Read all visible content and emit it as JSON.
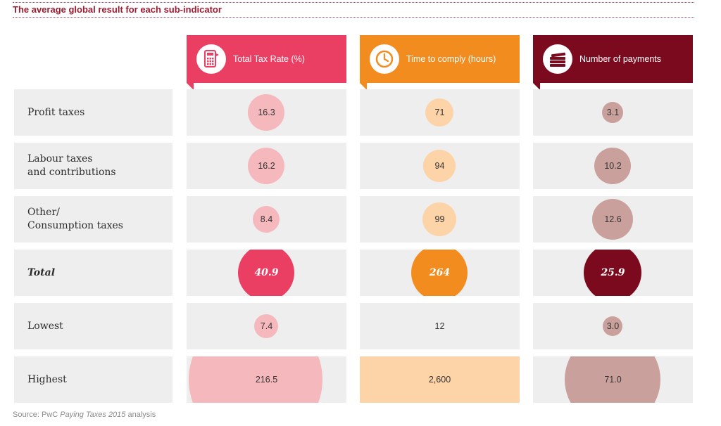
{
  "title": "The average global result for each sub-indicator",
  "source": {
    "prefix": "Source: PwC ",
    "italic": "Paying Taxes 2015",
    "suffix": " analysis"
  },
  "colors": {
    "tax_rate": "#ea3e63",
    "time": "#f28c1e",
    "payments": "#7c0a1e",
    "tax_rate_light": "#f5b8bd",
    "time_light": "#fdd3a8",
    "payments_light": "#c9a09b",
    "cell_bg": "#efeeee"
  },
  "columns": [
    {
      "label": "Total Tax Rate (%)",
      "icon": "calculator-icon"
    },
    {
      "label": "Time to comply (hours)",
      "icon": "clock-icon"
    },
    {
      "label": "Number of payments",
      "icon": "money-stack-icon"
    }
  ],
  "chart_data": {
    "type": "table",
    "title": "The average global result for each sub-indicator",
    "columns": [
      "Total Tax Rate (%)",
      "Time to comply (hours)",
      "Number of payments"
    ],
    "rows": [
      {
        "label": "Profit taxes",
        "values": [
          "16.3",
          "71",
          "3.1"
        ]
      },
      {
        "label": "Labour taxes\nand contributions",
        "values": [
          "16.2",
          "94",
          "10.2"
        ]
      },
      {
        "label": "Other/\nConsumption taxes",
        "values": [
          "8.4",
          "99",
          "12.6"
        ]
      },
      {
        "label": "Total",
        "values": [
          "40.9",
          "264",
          "25.9"
        ]
      },
      {
        "label": "Lowest",
        "values": [
          "7.4",
          "12",
          "3.0"
        ]
      },
      {
        "label": "Highest",
        "values": [
          "216.5",
          "2,600",
          "71.0"
        ]
      }
    ]
  }
}
